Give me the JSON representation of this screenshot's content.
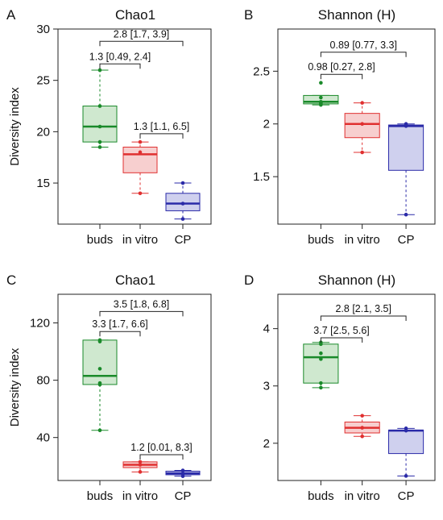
{
  "figure": {
    "ylabel": "Diversity index",
    "categories": [
      "buds",
      "in vitro",
      "CP"
    ],
    "group_colors": {
      "buds": "#1a8a2a",
      "in vitro": "#e03030",
      "CP": "#2a2aa8"
    },
    "group_fills": {
      "buds": "#cfe8cf",
      "in vitro": "#f7cfcf",
      "CP": "#cfd0ee"
    }
  },
  "chart_data": [
    {
      "type": "box",
      "panel": "A",
      "title": "Chao1",
      "ylabel": "Diversity index",
      "ylim": [
        11,
        30
      ],
      "yticks": [
        15,
        20,
        25,
        30
      ],
      "categories": [
        "buds",
        "in vitro",
        "CP"
      ],
      "boxes": [
        {
          "category": "buds",
          "min": 18.5,
          "q1": 19,
          "median": 20.5,
          "q3": 22.5,
          "max": 26,
          "points": [
            26,
            22.5,
            20.5,
            19,
            18.5
          ]
        },
        {
          "category": "in vitro",
          "min": 14,
          "q1": 16,
          "median": 17.8,
          "q3": 18.5,
          "max": 19,
          "points": [
            19,
            18,
            14
          ]
        },
        {
          "category": "CP",
          "min": 11.5,
          "q1": 12.3,
          "median": 13,
          "q3": 14,
          "max": 15,
          "points": [
            15,
            13,
            11.5
          ]
        }
      ],
      "annotations": [
        {
          "text": "2.8  [1.7, 3.9]",
          "from": "buds",
          "to": "CP",
          "level": 28.8
        },
        {
          "text": "1.3  [0.49, 2.4]",
          "from": "buds",
          "to": "in vitro",
          "level": 26.6
        },
        {
          "text": "1.3  [1.1, 6.5]",
          "from": "in vitro",
          "to": "CP",
          "level": 19.8
        }
      ]
    },
    {
      "type": "box",
      "panel": "B",
      "title": "Shannon (H)",
      "ylim": [
        1.05,
        2.9
      ],
      "yticks": [
        1.5,
        2,
        2.5
      ],
      "categories": [
        "buds",
        "in vitro",
        "CP"
      ],
      "boxes": [
        {
          "category": "buds",
          "min": 2.18,
          "q1": 2.19,
          "median": 2.21,
          "q3": 2.27,
          "max": 2.27,
          "points": [
            2.39,
            2.25,
            2.21,
            2.2,
            2.19,
            2.18
          ]
        },
        {
          "category": "in vitro",
          "min": 1.73,
          "q1": 1.87,
          "median": 2.0,
          "q3": 2.1,
          "max": 2.2,
          "points": [
            2.2,
            2.0,
            1.73
          ]
        },
        {
          "category": "CP",
          "min": 1.14,
          "q1": 1.56,
          "median": 1.98,
          "q3": 1.99,
          "max": 2.0,
          "points": [
            2.0,
            1.98,
            1.14
          ]
        }
      ],
      "annotations": [
        {
          "text": "0.89  [0.77, 3.3]",
          "from": "buds",
          "to": "CP",
          "level": 2.68
        },
        {
          "text": "0.98  [0.27, 2.8]",
          "from": "buds",
          "to": "in vitro",
          "level": 2.47
        }
      ]
    },
    {
      "type": "box",
      "panel": "C",
      "title": "Chao1",
      "ylabel": "Diversity index",
      "ylim": [
        10,
        140
      ],
      "yticks": [
        40,
        80,
        120
      ],
      "categories": [
        "buds",
        "in vitro",
        "CP"
      ],
      "boxes": [
        {
          "category": "buds",
          "min": 45,
          "q1": 77,
          "median": 83,
          "q3": 108,
          "max": 108,
          "points": [
            108,
            107,
            88,
            78,
            77,
            45
          ]
        },
        {
          "category": "in vitro",
          "min": 16,
          "q1": 19,
          "median": 21,
          "q3": 23,
          "max": 23,
          "points": [
            23,
            21,
            16
          ]
        },
        {
          "category": "CP",
          "min": 13,
          "q1": 14,
          "median": 15,
          "q3": 16.5,
          "max": 17,
          "points": [
            17,
            15,
            13
          ]
        }
      ],
      "annotations": [
        {
          "text": "3.5  [1.8, 6.8]",
          "from": "buds",
          "to": "CP",
          "level": 128
        },
        {
          "text": "3.3  [1.7, 6.6]",
          "from": "buds",
          "to": "in vitro",
          "level": 114
        },
        {
          "text": "1.2  [0.01, 8.3]",
          "from": "in vitro",
          "to": "CP",
          "level": 28
        }
      ]
    },
    {
      "type": "box",
      "panel": "D",
      "title": "Shannon (H)",
      "ylim": [
        1.35,
        4.6
      ],
      "yticks": [
        2,
        3,
        4
      ],
      "categories": [
        "buds",
        "in vitro",
        "CP"
      ],
      "boxes": [
        {
          "category": "buds",
          "min": 2.97,
          "q1": 3.05,
          "median": 3.5,
          "q3": 3.73,
          "max": 3.76,
          "points": [
            3.76,
            3.73,
            3.57,
            3.47,
            3.05,
            2.97
          ]
        },
        {
          "category": "in vitro",
          "min": 2.12,
          "q1": 2.18,
          "median": 2.27,
          "q3": 2.37,
          "max": 2.48,
          "points": [
            2.48,
            2.27,
            2.12
          ]
        },
        {
          "category": "CP",
          "min": 1.43,
          "q1": 1.82,
          "median": 2.22,
          "q3": 2.23,
          "max": 2.26,
          "points": [
            2.26,
            2.22,
            1.43
          ]
        }
      ],
      "annotations": [
        {
          "text": "2.8  [2.1, 3.5]",
          "from": "buds",
          "to": "CP",
          "level": 4.22
        },
        {
          "text": "3.7  [2.5, 5.6]",
          "from": "buds",
          "to": "in vitro",
          "level": 3.84
        }
      ]
    }
  ]
}
